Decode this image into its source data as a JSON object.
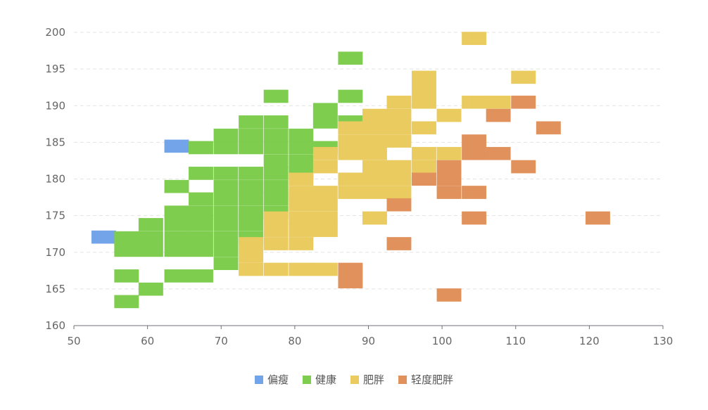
{
  "chart_data": {
    "type": "heatmap",
    "x_ticks": [
      "50",
      "60",
      "70",
      "80",
      "90",
      "100",
      "110",
      "120",
      "130"
    ],
    "y_ticks": [
      "160",
      "165",
      "170",
      "175",
      "180",
      "185",
      "190",
      "195",
      "200"
    ],
    "xlim": [
      50,
      130
    ],
    "ylim": [
      160,
      200
    ],
    "x_bin_width": 3.3,
    "y_bin_height": 1.75,
    "grid_y": true,
    "legend_position": "bottom-center",
    "legend": [
      {
        "key": "under",
        "label": "偏瘦",
        "color": "#73a3e8"
      },
      {
        "key": "normal",
        "label": "健康",
        "color": "#7fcd4f"
      },
      {
        "key": "over",
        "label": "肥胖",
        "color": "#eacb5f"
      },
      {
        "key": "mild",
        "label": "轻度肥胖",
        "color": "#e1925c"
      }
    ],
    "series": [
      {
        "key": "under",
        "cells": [
          [
            52.4,
            171.2
          ],
          [
            62.3,
            183.6
          ]
        ]
      },
      {
        "key": "normal",
        "cells": [
          [
            85.9,
            195.6
          ],
          [
            75.8,
            190.4
          ],
          [
            85.9,
            190.4
          ],
          [
            82.5,
            188.6
          ],
          [
            72.4,
            186.9
          ],
          [
            75.8,
            186.9
          ],
          [
            82.5,
            186.9
          ],
          [
            85.9,
            186.9
          ],
          [
            69.0,
            185.1
          ],
          [
            72.4,
            185.1
          ],
          [
            75.8,
            185.1
          ],
          [
            79.2,
            185.1
          ],
          [
            65.6,
            183.4
          ],
          [
            69.0,
            183.4
          ],
          [
            72.4,
            183.4
          ],
          [
            75.8,
            183.4
          ],
          [
            79.2,
            183.4
          ],
          [
            82.5,
            183.4
          ],
          [
            75.8,
            181.6
          ],
          [
            79.2,
            181.6
          ],
          [
            65.6,
            179.9
          ],
          [
            69.0,
            179.9
          ],
          [
            72.4,
            179.9
          ],
          [
            75.8,
            179.9
          ],
          [
            79.2,
            179.9
          ],
          [
            62.3,
            178.1
          ],
          [
            69.0,
            178.1
          ],
          [
            72.4,
            178.1
          ],
          [
            75.8,
            178.1
          ],
          [
            65.6,
            176.4
          ],
          [
            69.0,
            176.4
          ],
          [
            72.4,
            176.4
          ],
          [
            75.8,
            176.4
          ],
          [
            62.3,
            174.6
          ],
          [
            65.6,
            174.6
          ],
          [
            69.0,
            174.6
          ],
          [
            72.4,
            174.6
          ],
          [
            75.8,
            174.6
          ],
          [
            58.8,
            172.9
          ],
          [
            62.3,
            172.9
          ],
          [
            65.6,
            172.9
          ],
          [
            69.0,
            172.9
          ],
          [
            72.4,
            172.9
          ],
          [
            55.5,
            171.1
          ],
          [
            58.8,
            171.1
          ],
          [
            62.3,
            171.1
          ],
          [
            65.6,
            171.1
          ],
          [
            69.0,
            171.1
          ],
          [
            72.4,
            171.1
          ],
          [
            55.5,
            169.4
          ],
          [
            58.8,
            169.4
          ],
          [
            62.3,
            169.4
          ],
          [
            65.6,
            169.4
          ],
          [
            69.0,
            169.4
          ],
          [
            69.0,
            167.6
          ],
          [
            55.5,
            165.9
          ],
          [
            62.3,
            165.9
          ],
          [
            65.6,
            165.9
          ],
          [
            58.8,
            164.1
          ],
          [
            55.5,
            162.4
          ]
        ]
      },
      {
        "key": "over",
        "cells": [
          [
            102.7,
            198.3
          ],
          [
            95.9,
            193.0
          ],
          [
            109.4,
            193.0
          ],
          [
            95.9,
            191.3
          ],
          [
            92.5,
            189.6
          ],
          [
            95.9,
            189.6
          ],
          [
            102.7,
            189.6
          ],
          [
            106.0,
            189.6
          ],
          [
            89.2,
            187.8
          ],
          [
            92.5,
            187.8
          ],
          [
            99.3,
            187.8
          ],
          [
            85.9,
            186.1
          ],
          [
            89.2,
            186.1
          ],
          [
            92.5,
            186.1
          ],
          [
            95.9,
            186.1
          ],
          [
            85.9,
            184.3
          ],
          [
            89.2,
            184.3
          ],
          [
            92.5,
            184.3
          ],
          [
            82.5,
            182.6
          ],
          [
            85.9,
            182.6
          ],
          [
            89.2,
            182.6
          ],
          [
            95.9,
            182.6
          ],
          [
            99.3,
            182.6
          ],
          [
            82.5,
            180.8
          ],
          [
            89.2,
            180.8
          ],
          [
            92.5,
            180.8
          ],
          [
            95.9,
            180.8
          ],
          [
            79.2,
            179.1
          ],
          [
            85.9,
            179.1
          ],
          [
            89.2,
            179.1
          ],
          [
            92.5,
            179.1
          ],
          [
            79.2,
            177.3
          ],
          [
            82.5,
            177.3
          ],
          [
            85.9,
            177.3
          ],
          [
            89.2,
            177.3
          ],
          [
            92.5,
            177.3
          ],
          [
            79.2,
            175.6
          ],
          [
            82.5,
            175.6
          ],
          [
            75.8,
            173.8
          ],
          [
            79.2,
            173.8
          ],
          [
            82.5,
            173.8
          ],
          [
            89.2,
            173.8
          ],
          [
            75.8,
            172.1
          ],
          [
            79.2,
            172.1
          ],
          [
            82.5,
            172.1
          ],
          [
            72.4,
            170.3
          ],
          [
            75.8,
            170.3
          ],
          [
            79.2,
            170.3
          ],
          [
            72.4,
            168.6
          ],
          [
            72.4,
            166.8
          ],
          [
            75.8,
            166.8
          ],
          [
            79.2,
            166.8
          ],
          [
            82.5,
            166.8
          ]
        ]
      },
      {
        "key": "mild",
        "cells": [
          [
            109.4,
            189.6
          ],
          [
            106.0,
            187.8
          ],
          [
            112.8,
            186.1
          ],
          [
            102.7,
            184.3
          ],
          [
            102.7,
            182.6
          ],
          [
            106.0,
            182.6
          ],
          [
            99.3,
            180.8
          ],
          [
            109.4,
            180.8
          ],
          [
            95.9,
            179.1
          ],
          [
            99.3,
            179.1
          ],
          [
            99.3,
            177.3
          ],
          [
            102.7,
            177.3
          ],
          [
            92.5,
            175.6
          ],
          [
            102.7,
            173.8
          ],
          [
            119.5,
            173.8
          ],
          [
            92.5,
            170.3
          ],
          [
            85.9,
            166.8
          ],
          [
            85.9,
            165.1
          ],
          [
            99.3,
            163.3
          ]
        ]
      }
    ]
  }
}
